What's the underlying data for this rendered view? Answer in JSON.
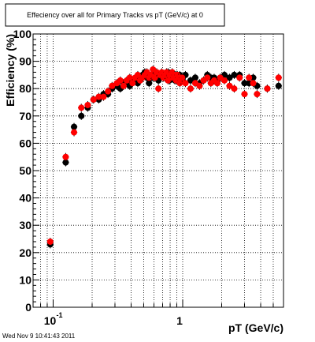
{
  "footer": {
    "timestamp": "Wed Nov  9 10:41:43 2011"
  },
  "chart_data": {
    "type": "scatter",
    "title": "Effeciency over all for Primary Tracks vs pT (GeV/c) at 0",
    "xlabel": "pT (GeV/c)",
    "ylabel": "Efficiency (%)",
    "xscale": "log",
    "xlim": [
      0.07,
      6.0
    ],
    "ylim": [
      0,
      100
    ],
    "grid": true,
    "y_ticks": [
      "0",
      "10",
      "20",
      "30",
      "40",
      "50",
      "60",
      "70",
      "80",
      "90",
      "100"
    ],
    "x_ticks": [
      {
        "base": "10",
        "exp": "-1"
      },
      {
        "base": "1",
        "exp": ""
      }
    ],
    "series": [
      {
        "color": "#000000",
        "x": [
          0.095,
          0.125,
          0.145,
          0.165,
          0.185,
          0.205,
          0.225,
          0.245,
          0.265,
          0.285,
          0.31,
          0.33,
          0.35,
          0.37,
          0.39,
          0.41,
          0.43,
          0.45,
          0.47,
          0.49,
          0.51,
          0.53,
          0.55,
          0.57,
          0.59,
          0.61,
          0.63,
          0.65,
          0.67,
          0.69,
          0.71,
          0.73,
          0.75,
          0.77,
          0.79,
          0.81,
          0.83,
          0.85,
          0.87,
          0.89,
          0.91,
          0.93,
          0.95,
          0.97,
          0.99,
          1.05,
          1.15,
          1.25,
          1.35,
          1.45,
          1.55,
          1.65,
          1.75,
          1.85,
          1.95,
          2.1,
          2.3,
          2.5,
          2.75,
          3.0,
          3.25,
          3.5,
          3.75,
          4.5,
          5.5
        ],
        "y": [
          23,
          53,
          66,
          70,
          73,
          76,
          76,
          78,
          78,
          80,
          81,
          80,
          82,
          82,
          81,
          83,
          83,
          82,
          84,
          85,
          86,
          84,
          82,
          84,
          84,
          86,
          85,
          83,
          85,
          85,
          85,
          84,
          84,
          86,
          83,
          84,
          85,
          84,
          83,
          85,
          84,
          84,
          85,
          83,
          83,
          85,
          83,
          84,
          82,
          83,
          85,
          84,
          84,
          83,
          84,
          85,
          84,
          85,
          85,
          82,
          82,
          84,
          81,
          80,
          81
        ]
      },
      {
        "color": "#ff0000",
        "x": [
          0.095,
          0.125,
          0.145,
          0.165,
          0.185,
          0.205,
          0.225,
          0.245,
          0.265,
          0.285,
          0.31,
          0.33,
          0.35,
          0.37,
          0.39,
          0.41,
          0.43,
          0.45,
          0.47,
          0.49,
          0.51,
          0.53,
          0.55,
          0.57,
          0.59,
          0.61,
          0.63,
          0.65,
          0.67,
          0.69,
          0.71,
          0.73,
          0.75,
          0.77,
          0.79,
          0.81,
          0.83,
          0.85,
          0.87,
          0.89,
          0.91,
          0.93,
          0.95,
          0.97,
          0.99,
          1.05,
          1.15,
          1.25,
          1.35,
          1.45,
          1.55,
          1.65,
          1.75,
          1.85,
          1.95,
          2.1,
          2.3,
          2.5,
          2.75,
          3.0,
          3.25,
          3.5,
          3.75,
          4.5,
          5.5
        ],
        "y": [
          24,
          55,
          64,
          73,
          74,
          76,
          77,
          77,
          79,
          81,
          82,
          83,
          81,
          83,
          84,
          82,
          84,
          85,
          83,
          84,
          85,
          86,
          84,
          85,
          87,
          84,
          86,
          80,
          85,
          86,
          84,
          85,
          86,
          83,
          85,
          84,
          86,
          84,
          85,
          83,
          85,
          84,
          82,
          83,
          84,
          82,
          80,
          82,
          81,
          83,
          84,
          82,
          83,
          82,
          84,
          83,
          81,
          80,
          84,
          78,
          84,
          82,
          78,
          80,
          84
        ]
      }
    ]
  }
}
